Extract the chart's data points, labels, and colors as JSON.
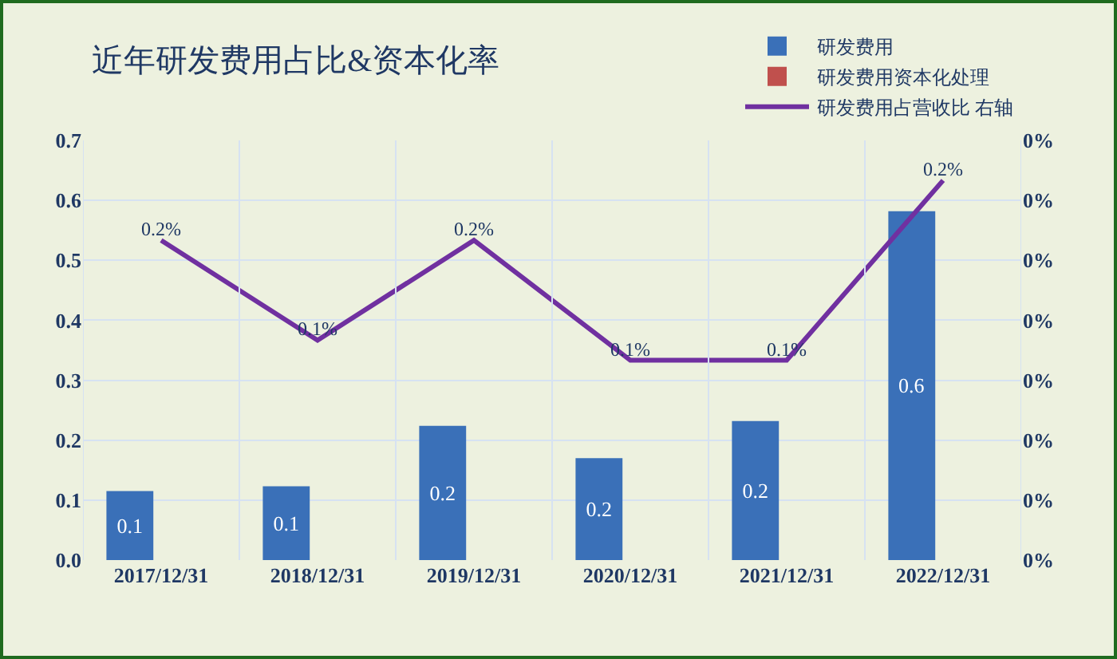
{
  "chart_data": {
    "type": "bar",
    "title": "近年研发费用占比&资本化率",
    "categories": [
      "2017/12/31",
      "2018/12/31",
      "2019/12/31",
      "2020/12/31",
      "2021/12/31",
      "2022/12/31"
    ],
    "series": [
      {
        "name": "研发费用",
        "color": "#3a70b8",
        "values": [
          0.115,
          0.123,
          0.224,
          0.17,
          0.232,
          0.582
        ],
        "value_labels": [
          "0.1",
          "0.1",
          "0.2",
          "0.2",
          "0.2",
          "0.6"
        ]
      },
      {
        "name": "研发费用资本化处理",
        "color": "#c0504d",
        "values": [
          null,
          null,
          null,
          null,
          null,
          null
        ]
      },
      {
        "name": "研发费用占营收比 右轴",
        "type": "line",
        "axis": "y2",
        "color": "#7030a0",
        "values": [
          0.19,
          0.14,
          0.19,
          0.13,
          0.13,
          0.22
        ],
        "value_labels": [
          "0.2%",
          "0.1%",
          "0.2%",
          "0.1%",
          "0.1%",
          "0.2%"
        ]
      }
    ],
    "ylim": [
      0,
      0.7
    ],
    "yticks": [
      {
        "value": 0,
        "label": "0.0"
      },
      0.1,
      0.2,
      0.3,
      0.4,
      0.5,
      0.6,
      0.7
    ],
    "y2lim": [
      0.03,
      0.24
    ],
    "y2ticks": [
      {
        "value": 0.03,
        "label": "0%"
      },
      {
        "value": 0.06,
        "label": "0%"
      },
      {
        "value": 0.09,
        "label": "0%"
      },
      {
        "value": 0.12,
        "label": "0%"
      },
      {
        "value": 0.15,
        "label": "0%"
      },
      {
        "value": 0.18,
        "label": "0%"
      },
      {
        "value": 0.21,
        "label": "0%"
      },
      {
        "value": 0.24,
        "label": "0%"
      }
    ],
    "grid": true,
    "legend": "top right",
    "marker": "none",
    "line_style": "solid"
  }
}
